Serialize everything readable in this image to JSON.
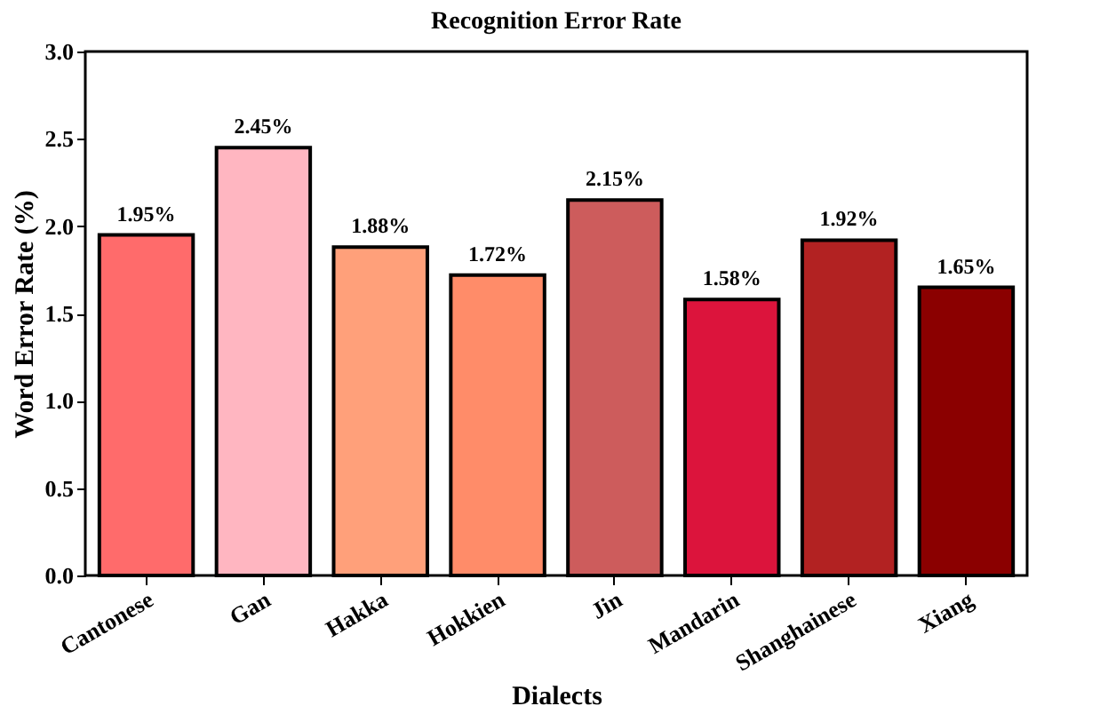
{
  "chart_data": {
    "type": "bar",
    "title": "Recognition Error Rate",
    "xlabel": "Dialects",
    "ylabel": "Word Error Rate (%)",
    "categories": [
      "Cantonese",
      "Gan",
      "Hakka",
      "Hokkien",
      "Jin",
      "Mandarin",
      "Shanghainese",
      "Xiang"
    ],
    "values": [
      1.95,
      2.45,
      1.88,
      1.72,
      2.15,
      1.58,
      1.92,
      1.65
    ],
    "colors": [
      "#ff6b6b",
      "#ffb6c1",
      "#ffa07a",
      "#ff8c69",
      "#cd5c5c",
      "#dc143c",
      "#b22222",
      "#8b0000"
    ],
    "value_labels": [
      "1.95%",
      "2.45%",
      "1.88%",
      "1.72%",
      "2.15%",
      "1.58%",
      "1.92%",
      "1.65%"
    ],
    "ylim": [
      0,
      3.0
    ],
    "yticks": [
      {
        "value": 0,
        "label": "0.0"
      },
      {
        "value": 0.5,
        "label": "0.5"
      },
      {
        "value": 1,
        "label": "1.0"
      },
      {
        "value": 1.5,
        "label": "1.5"
      },
      {
        "value": 2,
        "label": "2.0"
      },
      {
        "value": 2.5,
        "label": "2.5"
      },
      {
        "value": 3,
        "label": "3.0"
      }
    ],
    "grid": false
  }
}
